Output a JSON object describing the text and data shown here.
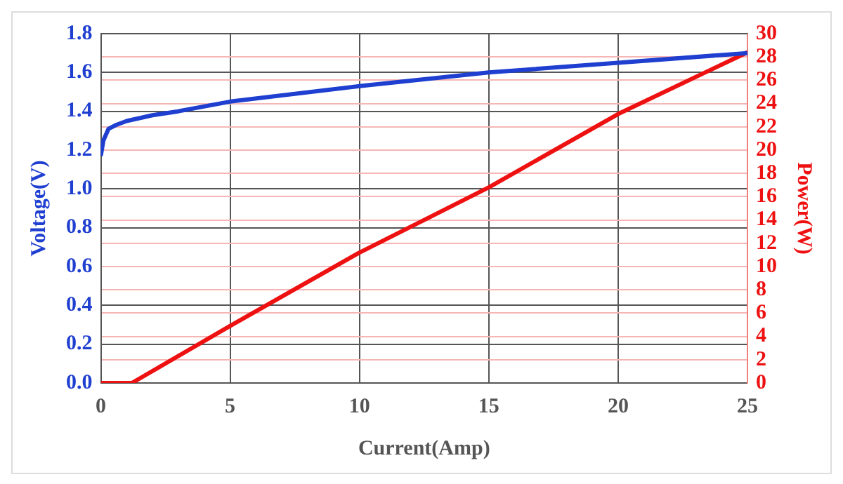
{
  "chart_data": {
    "type": "line",
    "xlabel": "Current(Amp)",
    "ylabel": "Voltage(V)",
    "y2label": "Power(W)",
    "xlim": [
      0,
      25
    ],
    "xticks": [
      0,
      5,
      10,
      15,
      20,
      25
    ],
    "ylim": [
      0,
      1.8
    ],
    "yticks": [
      {
        "value": 0,
        "label": "0.0"
      },
      0.2,
      0.4,
      0.6,
      0.8,
      {
        "value": 1,
        "label": "1.0"
      },
      1.2,
      1.4,
      1.6,
      1.8
    ],
    "y2lim": [
      0,
      30
    ],
    "y2ticks": [
      0,
      2,
      4,
      6,
      8,
      10,
      12,
      14,
      16,
      18,
      20,
      22,
      24,
      26,
      28,
      30
    ],
    "grid": true,
    "marker": "none",
    "line_style": "solid",
    "series": [
      {
        "color": "#1f3fd0",
        "axis": "y",
        "x": [
          0,
          0.1,
          0.3,
          0.6,
          1,
          2,
          3,
          5,
          10,
          15,
          20,
          25
        ],
        "values": [
          1.17,
          1.25,
          1.31,
          1.33,
          1.35,
          1.38,
          1.4,
          1.45,
          1.53,
          1.6,
          1.65,
          1.7
        ]
      },
      {
        "color": "#ee1111",
        "axis": "y2",
        "x": [
          0,
          1.2,
          5,
          10,
          15,
          20,
          25
        ],
        "values": [
          0,
          0,
          4.9,
          11.2,
          16.8,
          23.1,
          28.4
        ]
      }
    ]
  }
}
